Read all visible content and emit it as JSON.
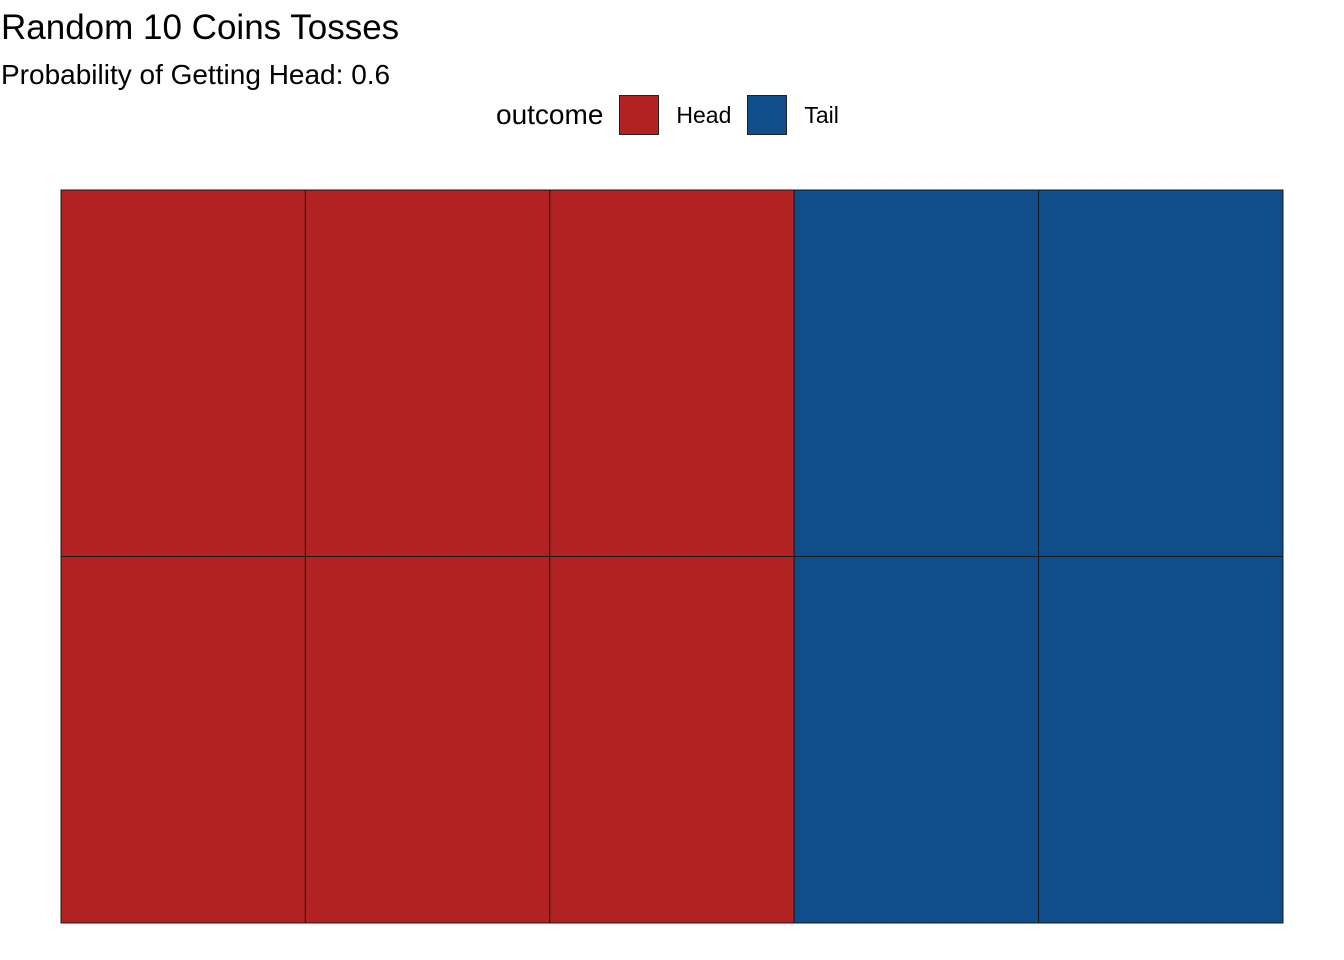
{
  "chart_data": {
    "type": "heatmap",
    "title": "Random 10 Coins Tosses",
    "subtitle": "Probability of Getting Head: 0.6",
    "legend": {
      "title": "outcome",
      "position": "top",
      "entries": [
        {
          "label": "Head",
          "color": "#B22222"
        },
        {
          "label": "Tail",
          "color": "#104E8B"
        }
      ]
    },
    "grid": {
      "columns": 5,
      "rows": 2
    },
    "tiles": [
      {
        "col": 1,
        "row": 1,
        "outcome": "Head"
      },
      {
        "col": 1,
        "row": 2,
        "outcome": "Head"
      },
      {
        "col": 2,
        "row": 1,
        "outcome": "Head"
      },
      {
        "col": 2,
        "row": 2,
        "outcome": "Head"
      },
      {
        "col": 3,
        "row": 1,
        "outcome": "Head"
      },
      {
        "col": 3,
        "row": 2,
        "outcome": "Head"
      },
      {
        "col": 4,
        "row": 1,
        "outcome": "Tail"
      },
      {
        "col": 4,
        "row": 2,
        "outcome": "Tail"
      },
      {
        "col": 5,
        "row": 1,
        "outcome": "Tail"
      },
      {
        "col": 5,
        "row": 2,
        "outcome": "Tail"
      }
    ],
    "counts": {
      "Head": 6,
      "Tail": 4
    },
    "tile_border_color": "#1a1a1a"
  }
}
